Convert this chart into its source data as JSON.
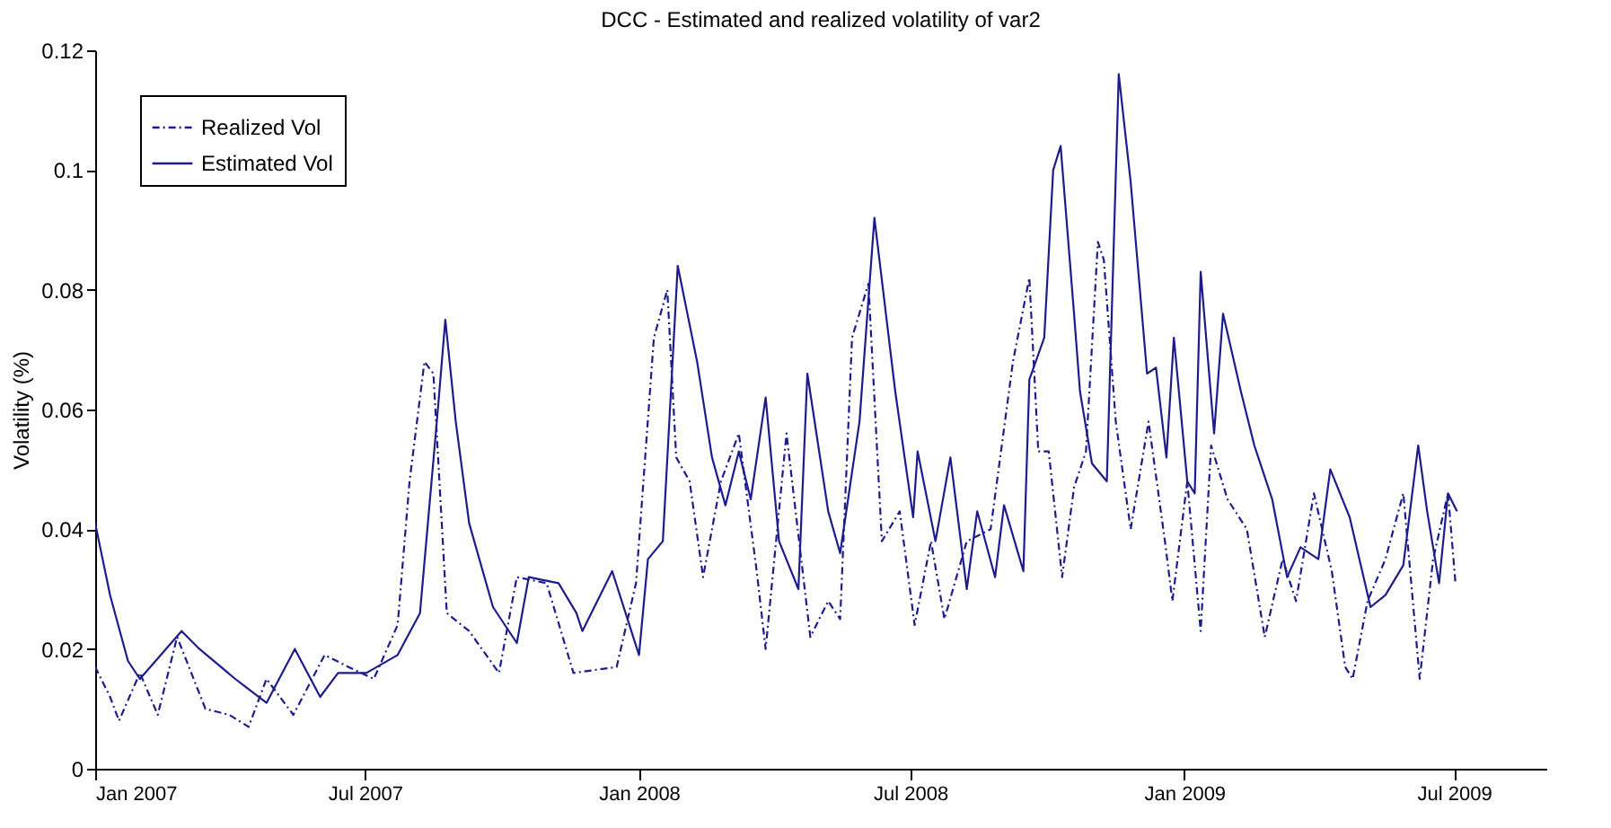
{
  "chart_data": {
    "type": "line",
    "title": "DCC - Estimated and realized volatility of var2",
    "ylabel": "Volatility (%)",
    "xlim": [
      "2007-01-01",
      "2009-09-01"
    ],
    "xticks": [
      {
        "value": "2007-01-01",
        "label": "Jan 2007"
      },
      {
        "value": "2007-07-01",
        "label": "Jul 2007"
      },
      {
        "value": "2008-01-01",
        "label": "Jan 2008"
      },
      {
        "value": "2008-07-01",
        "label": "Jul 2008"
      },
      {
        "value": "2009-01-01",
        "label": "Jan 2009"
      },
      {
        "value": "2009-07-01",
        "label": "Jul 2009"
      }
    ],
    "ylim": [
      0,
      0.12
    ],
    "yticks": [
      0,
      0.02,
      0.04,
      0.06,
      0.08,
      0.1,
      0.12
    ],
    "grid": false,
    "legend": "top left",
    "series": [
      {
        "name": "Realized Vol",
        "color": "#1c1c8c",
        "line_style": "dashdot",
        "x": [
          "2007-01-01",
          "2007-01-11",
          "2007-01-17",
          "2007-01-31",
          "2007-02-12",
          "2007-02-25",
          "2007-03-16",
          "2007-04-01",
          "2007-04-14",
          "2007-04-26",
          "2007-05-14",
          "2007-06-04",
          "2007-06-20",
          "2007-07-07",
          "2007-07-23",
          "2007-07-31",
          "2007-08-10",
          "2007-08-16",
          "2007-08-25",
          "2007-09-09",
          "2007-09-29",
          "2007-10-11",
          "2007-10-31",
          "2007-11-18",
          "2007-12-17",
          "2007-12-30",
          "2008-01-11",
          "2008-01-20",
          "2008-01-26",
          "2008-02-04",
          "2008-02-13",
          "2008-02-25",
          "2008-03-08",
          "2008-03-20",
          "2008-03-26",
          "2008-04-09",
          "2008-04-25",
          "2008-05-07",
          "2008-05-15",
          "2008-05-23",
          "2008-06-03",
          "2008-06-12",
          "2008-06-24",
          "2008-07-04",
          "2008-07-15",
          "2008-07-24",
          "2008-08-08",
          "2008-08-24",
          "2008-09-08",
          "2008-09-19",
          "2008-09-25",
          "2008-10-02",
          "2008-10-11",
          "2008-10-19",
          "2008-10-27",
          "2008-11-04",
          "2008-11-08",
          "2008-11-16",
          "2008-11-26",
          "2008-12-08",
          "2008-12-19",
          "2008-12-24",
          "2009-01-03",
          "2009-01-12",
          "2009-01-19",
          "2009-01-30",
          "2009-02-12",
          "2009-02-24",
          "2009-03-08",
          "2009-03-17",
          "2009-03-29",
          "2009-04-10",
          "2009-04-19",
          "2009-04-24",
          "2009-05-04",
          "2009-05-16",
          "2009-05-28",
          "2009-06-08",
          "2009-06-17",
          "2009-06-27",
          "2009-07-02"
        ],
        "values": [
          0.017,
          0.012,
          0.008,
          0.016,
          0.009,
          0.022,
          0.01,
          0.009,
          0.007,
          0.015,
          0.009,
          0.019,
          0.017,
          0.015,
          0.024,
          0.048,
          0.068,
          0.066,
          0.026,
          0.023,
          0.016,
          0.032,
          0.031,
          0.016,
          0.017,
          0.031,
          0.072,
          0.08,
          0.052,
          0.048,
          0.032,
          0.048,
          0.056,
          0.033,
          0.02,
          0.056,
          0.022,
          0.028,
          0.025,
          0.072,
          0.081,
          0.038,
          0.043,
          0.024,
          0.038,
          0.025,
          0.038,
          0.04,
          0.068,
          0.082,
          0.053,
          0.053,
          0.032,
          0.047,
          0.053,
          0.088,
          0.085,
          0.058,
          0.04,
          0.058,
          0.038,
          0.028,
          0.048,
          0.023,
          0.054,
          0.045,
          0.04,
          0.022,
          0.035,
          0.028,
          0.046,
          0.033,
          0.017,
          0.015,
          0.028,
          0.035,
          0.046,
          0.015,
          0.035,
          0.046,
          0.031
        ]
      },
      {
        "name": "Estimated Vol",
        "color": "#1c1c8c",
        "line_style": "solid",
        "x": [
          "2007-01-01",
          "2007-01-11",
          "2007-01-23",
          "2007-01-31",
          "2007-02-28",
          "2007-03-12",
          "2007-04-05",
          "2007-04-26",
          "2007-05-15",
          "2007-06-01",
          "2007-06-13",
          "2007-07-02",
          "2007-07-23",
          "2007-08-07",
          "2007-08-13",
          "2007-08-19",
          "2007-08-24",
          "2007-08-31",
          "2007-09-09",
          "2007-09-25",
          "2007-10-11",
          "2007-10-19",
          "2007-11-08",
          "2007-11-20",
          "2007-11-24",
          "2007-12-14",
          "2008-01-01",
          "2008-01-07",
          "2008-01-17",
          "2008-01-27",
          "2008-02-09",
          "2008-02-19",
          "2008-02-28",
          "2008-03-08",
          "2008-03-16",
          "2008-03-26",
          "2008-04-04",
          "2008-04-17",
          "2008-04-23",
          "2008-05-07",
          "2008-05-15",
          "2008-05-28",
          "2008-06-07",
          "2008-06-21",
          "2008-07-03",
          "2008-07-06",
          "2008-07-18",
          "2008-07-28",
          "2008-08-08",
          "2008-08-15",
          "2008-08-27",
          "2008-09-02",
          "2008-09-15",
          "2008-09-19",
          "2008-09-29",
          "2008-10-05",
          "2008-10-10",
          "2008-10-19",
          "2008-10-23",
          "2008-10-31",
          "2008-11-10",
          "2008-11-18",
          "2008-11-26",
          "2008-12-07",
          "2008-12-13",
          "2008-12-20",
          "2008-12-25",
          "2009-01-03",
          "2009-01-08",
          "2009-01-12",
          "2009-01-21",
          "2009-01-27",
          "2009-02-08",
          "2009-02-17",
          "2009-03-01",
          "2009-03-11",
          "2009-03-20",
          "2009-04-01",
          "2009-04-09",
          "2009-04-22",
          "2009-05-06",
          "2009-05-16",
          "2009-05-28",
          "2009-06-07",
          "2009-06-13",
          "2009-06-21",
          "2009-06-27",
          "2009-07-03"
        ],
        "values": [
          0.041,
          0.029,
          0.018,
          0.015,
          0.023,
          0.02,
          0.015,
          0.011,
          0.02,
          0.012,
          0.016,
          0.016,
          0.019,
          0.026,
          0.043,
          0.06,
          0.075,
          0.058,
          0.041,
          0.027,
          0.021,
          0.032,
          0.031,
          0.026,
          0.023,
          0.033,
          0.019,
          0.035,
          0.038,
          0.084,
          0.068,
          0.052,
          0.044,
          0.053,
          0.045,
          0.062,
          0.038,
          0.03,
          0.066,
          0.043,
          0.036,
          0.058,
          0.092,
          0.063,
          0.042,
          0.053,
          0.038,
          0.052,
          0.03,
          0.043,
          0.032,
          0.044,
          0.033,
          0.065,
          0.072,
          0.1,
          0.104,
          0.076,
          0.063,
          0.051,
          0.048,
          0.116,
          0.098,
          0.066,
          0.067,
          0.052,
          0.072,
          0.048,
          0.046,
          0.083,
          0.056,
          0.076,
          0.063,
          0.054,
          0.045,
          0.032,
          0.037,
          0.035,
          0.05,
          0.042,
          0.027,
          0.029,
          0.034,
          0.054,
          0.043,
          0.031,
          0.046,
          0.043
        ]
      }
    ]
  }
}
